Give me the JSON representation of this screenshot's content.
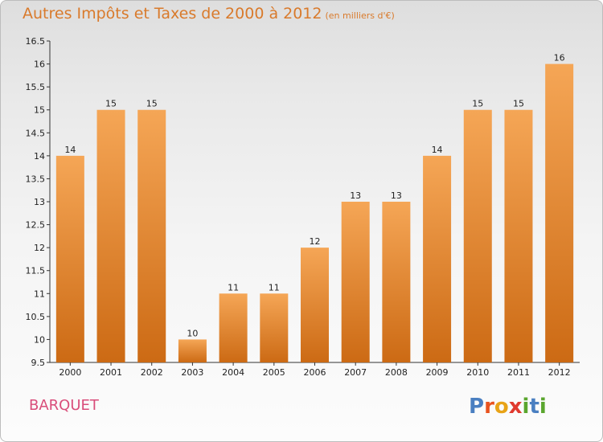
{
  "title": "Autres Impôts et Taxes de 2000 à 2012",
  "subtitle": "(en milliers d'€)",
  "commune": "BARQUET",
  "logo": [
    "P",
    "r",
    "o",
    "x",
    "i",
    "t",
    "i"
  ],
  "logo_colors": [
    "#4a7fc1",
    "#e8531f",
    "#e8a317",
    "#e03a2f",
    "#5aa62e",
    "#4a7fc1",
    "#5aa62e"
  ],
  "colors": {
    "bar_top": "#f5a656",
    "bar_bottom": "#cc6a14",
    "title": "#d97a2b",
    "commune": "#d94d7a"
  },
  "chart_data": {
    "type": "bar",
    "categories": [
      "2000",
      "2001",
      "2002",
      "2003",
      "2004",
      "2005",
      "2006",
      "2007",
      "2008",
      "2009",
      "2010",
      "2011",
      "2012"
    ],
    "values": [
      14,
      15,
      15,
      10,
      11,
      11,
      12,
      13,
      13,
      14,
      15,
      15,
      16
    ],
    "ylim": [
      9.5,
      16.5
    ],
    "yticks": [
      "9.5",
      "10",
      "10.5",
      "11",
      "11.5",
      "12",
      "12.5",
      "13",
      "13.5",
      "14",
      "14.5",
      "15",
      "15.5",
      "16",
      "16.5"
    ],
    "grid": false
  }
}
